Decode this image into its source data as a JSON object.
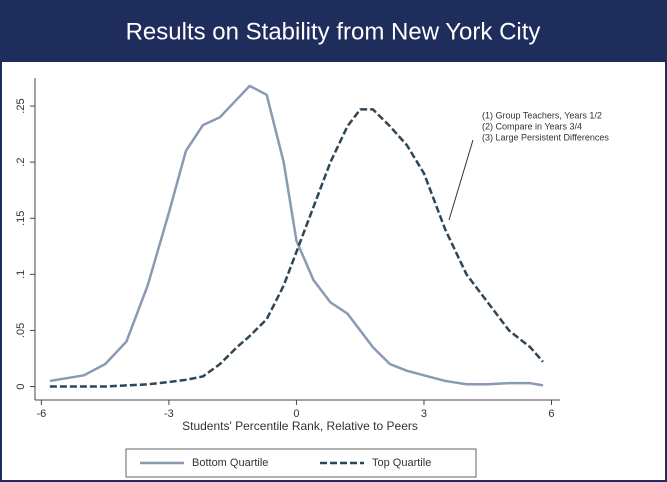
{
  "chart_data": {
    "type": "line",
    "title": "Results on Stability from New York City",
    "xlabel": "Students' Percentile Rank, Relative to Peers",
    "x": [
      -5.8,
      -5,
      -4.5,
      -4,
      -3.5,
      -3,
      -2.6,
      -2.2,
      -1.8,
      -1.4,
      -1.1,
      -0.7,
      -0.3,
      0,
      0.4,
      0.8,
      1.2,
      1.5,
      1.8,
      2.2,
      2.6,
      3,
      3.5,
      4,
      4.5,
      5,
      5.5,
      5.8
    ],
    "series": [
      {
        "name": "Bottom Quartile",
        "color": "#8a9ab3",
        "dash": false,
        "values": [
          0.005,
          0.01,
          0.02,
          0.04,
          0.09,
          0.155,
          0.21,
          0.233,
          0.24,
          0.256,
          0.268,
          0.26,
          0.2,
          0.13,
          0.095,
          0.075,
          0.065,
          0.05,
          0.035,
          0.02,
          0.014,
          0.01,
          0.005,
          0.002,
          0.002,
          0.003,
          0.003,
          0.001
        ]
      },
      {
        "name": "Top Quartile",
        "color": "#2e4656",
        "dash": true,
        "values": [
          0,
          0,
          0,
          0.001,
          0.002,
          0.004,
          0.006,
          0.009,
          0.02,
          0.035,
          0.045,
          0.06,
          0.09,
          0.12,
          0.16,
          0.2,
          0.232,
          0.247,
          0.247,
          0.232,
          0.215,
          0.19,
          0.14,
          0.1,
          0.075,
          0.05,
          0.035,
          0.022
        ]
      }
    ],
    "xlim": [
      -6.15,
      6.2
    ],
    "ylim": [
      -0.012,
      0.275
    ],
    "xticks": [
      -6,
      -3,
      0,
      3,
      6
    ],
    "yticks": [
      0,
      {
        "value": 0.05,
        "label": ".05"
      },
      {
        "value": 0.1,
        "label": ".1"
      },
      {
        "value": 0.15,
        "label": ".15"
      },
      {
        "value": 0.2,
        "label": ".2"
      },
      {
        "value": 0.25,
        "label": ".25"
      }
    ],
    "annotations": [
      "(1) Group Teachers, Years 1/2",
      "(2) Compare in Years 3/4",
      "(3) Large Persistent Differences"
    ],
    "legend": "bottom"
  }
}
